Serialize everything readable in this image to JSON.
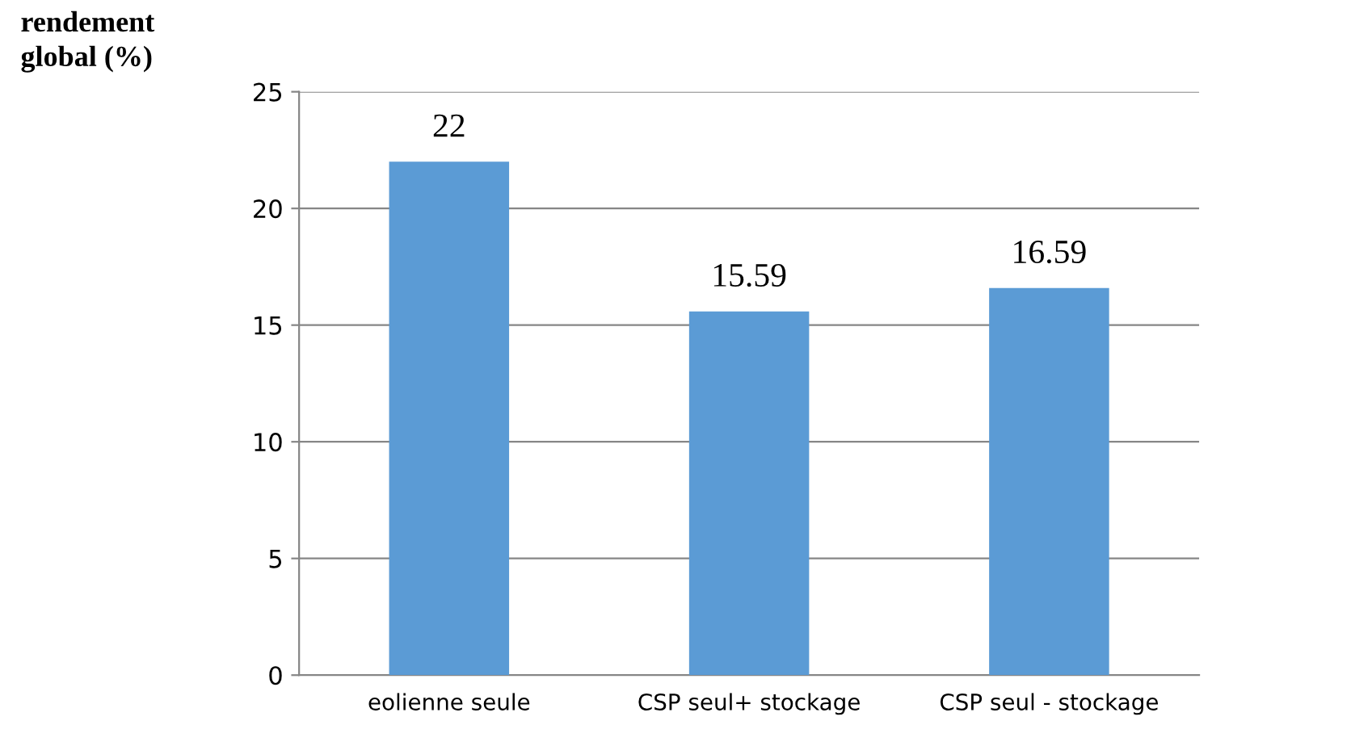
{
  "chart_data": {
    "type": "bar",
    "ylabel": "rendement\nglobal (%)",
    "categories": [
      "eolienne seule",
      "CSP seul+ stockage",
      "CSP seul - stockage"
    ],
    "values": [
      22,
      15.59,
      16.59
    ],
    "color": "#5b9bd5",
    "ylim": [
      0,
      25
    ],
    "yticks": [
      0,
      5,
      10,
      15,
      20,
      25
    ],
    "grid": "y",
    "data_labels": true
  }
}
